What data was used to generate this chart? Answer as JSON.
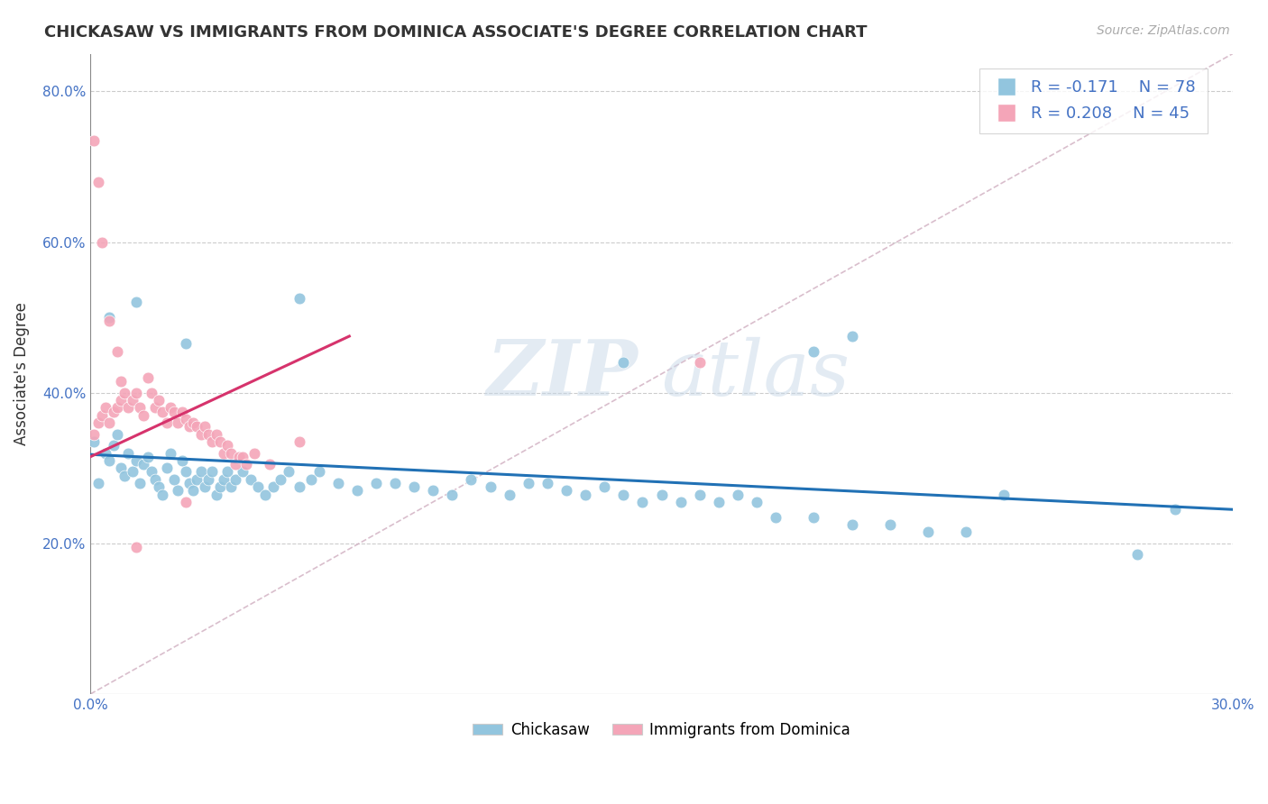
{
  "title": "CHICKASAW VS IMMIGRANTS FROM DOMINICA ASSOCIATE'S DEGREE CORRELATION CHART",
  "source_text": "Source: ZipAtlas.com",
  "ylabel": "Associate's Degree",
  "xmin": 0.0,
  "xmax": 0.3,
  "ymin": 0.0,
  "ymax": 0.85,
  "yticks": [
    0.2,
    0.4,
    0.6,
    0.8
  ],
  "ytick_labels": [
    "20.0%",
    "40.0%",
    "60.0%",
    "80.0%"
  ],
  "xticks": [
    0.0,
    0.3
  ],
  "xtick_labels": [
    "0.0%",
    "30.0%"
  ],
  "watermark_zip": "ZIP",
  "watermark_atlas": "atlas",
  "blue_color": "#92c5de",
  "pink_color": "#f4a5b8",
  "blue_line_color": "#2171b5",
  "pink_line_color": "#d6336c",
  "diagonal_dash_color": "#d0aec0",
  "blue_trend_x": [
    0.0,
    0.3
  ],
  "blue_trend_y": [
    0.318,
    0.245
  ],
  "pink_trend_x": [
    0.0,
    0.068
  ],
  "pink_trend_y": [
    0.315,
    0.475
  ],
  "chickasaw_x": [
    0.001,
    0.002,
    0.004,
    0.005,
    0.006,
    0.007,
    0.008,
    0.009,
    0.01,
    0.011,
    0.012,
    0.013,
    0.014,
    0.015,
    0.016,
    0.017,
    0.018,
    0.019,
    0.02,
    0.021,
    0.022,
    0.023,
    0.024,
    0.025,
    0.026,
    0.027,
    0.028,
    0.029,
    0.03,
    0.031,
    0.032,
    0.033,
    0.034,
    0.035,
    0.036,
    0.037,
    0.038,
    0.04,
    0.042,
    0.044,
    0.046,
    0.048,
    0.05,
    0.052,
    0.055,
    0.058,
    0.06,
    0.065,
    0.07,
    0.075,
    0.08,
    0.085,
    0.09,
    0.095,
    0.1,
    0.105,
    0.11,
    0.115,
    0.12,
    0.125,
    0.13,
    0.135,
    0.14,
    0.145,
    0.15,
    0.155,
    0.16,
    0.165,
    0.17,
    0.175,
    0.18,
    0.19,
    0.2,
    0.21,
    0.22,
    0.23,
    0.24,
    0.285
  ],
  "chickasaw_y": [
    0.335,
    0.28,
    0.32,
    0.31,
    0.33,
    0.345,
    0.3,
    0.29,
    0.32,
    0.295,
    0.31,
    0.28,
    0.305,
    0.315,
    0.295,
    0.285,
    0.275,
    0.265,
    0.3,
    0.32,
    0.285,
    0.27,
    0.31,
    0.295,
    0.28,
    0.27,
    0.285,
    0.295,
    0.275,
    0.285,
    0.295,
    0.265,
    0.275,
    0.285,
    0.295,
    0.275,
    0.285,
    0.295,
    0.285,
    0.275,
    0.265,
    0.275,
    0.285,
    0.295,
    0.275,
    0.285,
    0.295,
    0.28,
    0.27,
    0.28,
    0.28,
    0.275,
    0.27,
    0.265,
    0.285,
    0.275,
    0.265,
    0.28,
    0.28,
    0.27,
    0.265,
    0.275,
    0.265,
    0.255,
    0.265,
    0.255,
    0.265,
    0.255,
    0.265,
    0.255,
    0.235,
    0.235,
    0.225,
    0.225,
    0.215,
    0.215,
    0.265,
    0.245
  ],
  "chickasaw_extra_x": [
    0.005,
    0.012,
    0.025,
    0.055,
    0.14,
    0.19,
    0.2,
    0.275
  ],
  "chickasaw_extra_y": [
    0.5,
    0.52,
    0.465,
    0.525,
    0.44,
    0.455,
    0.475,
    0.185
  ],
  "dominica_x": [
    0.001,
    0.002,
    0.003,
    0.004,
    0.005,
    0.006,
    0.007,
    0.008,
    0.009,
    0.01,
    0.011,
    0.012,
    0.013,
    0.014,
    0.015,
    0.016,
    0.017,
    0.018,
    0.019,
    0.02,
    0.021,
    0.022,
    0.023,
    0.024,
    0.025,
    0.026,
    0.027,
    0.028,
    0.029,
    0.03,
    0.031,
    0.032,
    0.033,
    0.034,
    0.035,
    0.036,
    0.037,
    0.038,
    0.039,
    0.04,
    0.041,
    0.043,
    0.047,
    0.055,
    0.16
  ],
  "dominica_y": [
    0.345,
    0.36,
    0.37,
    0.38,
    0.36,
    0.375,
    0.38,
    0.39,
    0.4,
    0.38,
    0.39,
    0.4,
    0.38,
    0.37,
    0.42,
    0.4,
    0.38,
    0.39,
    0.375,
    0.36,
    0.38,
    0.375,
    0.36,
    0.375,
    0.365,
    0.355,
    0.36,
    0.355,
    0.345,
    0.355,
    0.345,
    0.335,
    0.345,
    0.335,
    0.32,
    0.33,
    0.32,
    0.305,
    0.315,
    0.315,
    0.305,
    0.32,
    0.305,
    0.335,
    0.44
  ],
  "dominica_extra_x": [
    0.001,
    0.002,
    0.003,
    0.005,
    0.007,
    0.008,
    0.012,
    0.025
  ],
  "dominica_extra_y": [
    0.735,
    0.68,
    0.6,
    0.495,
    0.455,
    0.415,
    0.195,
    0.255
  ]
}
